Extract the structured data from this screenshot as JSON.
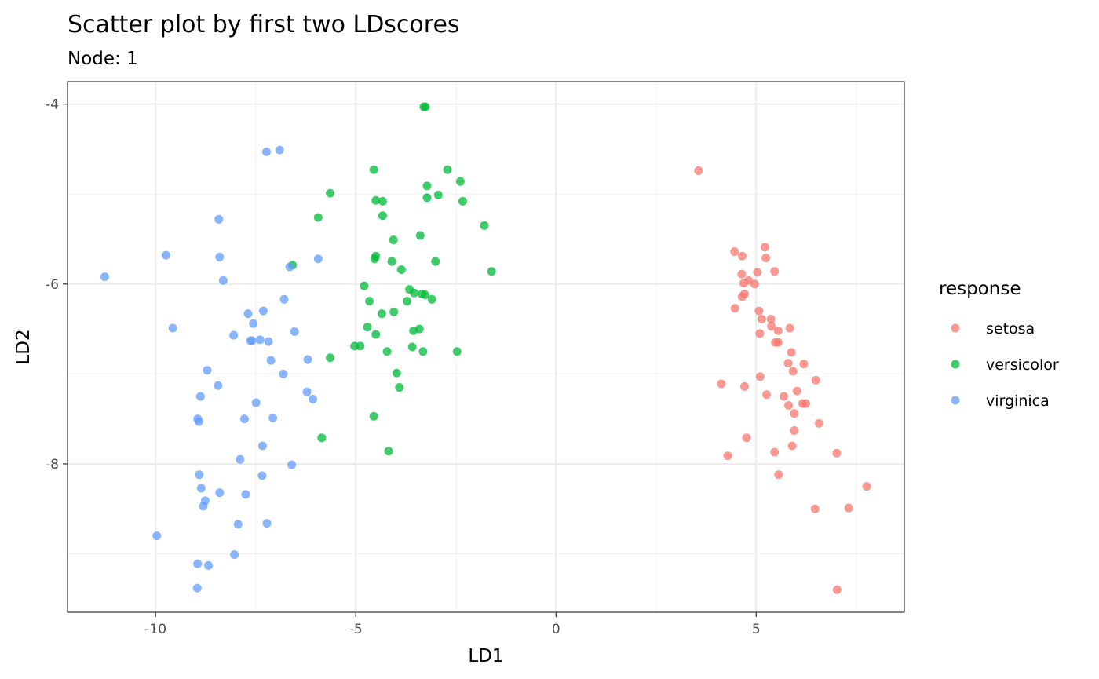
{
  "chart_data": {
    "type": "scatter",
    "title": "Scatter plot by first two LDscores",
    "subtitle": "Node: 1",
    "xlabel": "LD1",
    "ylabel": "LD2",
    "xlim": [
      -12.2,
      8.7
    ],
    "ylim": [
      -9.65,
      -3.75
    ],
    "xticks": [
      -10,
      -5,
      0,
      5
    ],
    "xtick_labels": [
      "-10",
      "-5",
      "0",
      "5"
    ],
    "yticks": [
      -8,
      -6,
      -4
    ],
    "ytick_labels": [
      "-8",
      "-6",
      "-4"
    ],
    "grid": true,
    "legend": {
      "title": "response",
      "position": "right",
      "entries": [
        "setosa",
        "versicolor",
        "virginica"
      ]
    },
    "series": [
      {
        "name": "setosa",
        "color": "#F8766D",
        "points": [
          [
            3.56,
            -4.74
          ],
          [
            4.46,
            -5.64
          ],
          [
            4.65,
            -5.69
          ],
          [
            5.22,
            -5.59
          ],
          [
            5.24,
            -5.71
          ],
          [
            4.64,
            -5.89
          ],
          [
            4.81,
            -5.96
          ],
          [
            4.69,
            -5.99
          ],
          [
            4.96,
            -6.0
          ],
          [
            5.03,
            -5.87
          ],
          [
            5.46,
            -5.86
          ],
          [
            4.71,
            -6.11
          ],
          [
            4.65,
            -6.14
          ],
          [
            4.47,
            -6.27
          ],
          [
            5.07,
            -6.3
          ],
          [
            5.14,
            -6.39
          ],
          [
            5.37,
            -6.39
          ],
          [
            5.38,
            -6.47
          ],
          [
            5.55,
            -6.52
          ],
          [
            5.84,
            -6.49
          ],
          [
            5.09,
            -6.55
          ],
          [
            5.48,
            -6.65
          ],
          [
            5.55,
            -6.65
          ],
          [
            5.88,
            -6.76
          ],
          [
            5.8,
            -6.88
          ],
          [
            6.19,
            -6.89
          ],
          [
            5.92,
            -6.97
          ],
          [
            5.1,
            -7.03
          ],
          [
            6.49,
            -7.07
          ],
          [
            4.13,
            -7.11
          ],
          [
            4.71,
            -7.14
          ],
          [
            6.02,
            -7.19
          ],
          [
            5.26,
            -7.23
          ],
          [
            5.69,
            -7.25
          ],
          [
            5.81,
            -7.35
          ],
          [
            6.16,
            -7.33
          ],
          [
            6.24,
            -7.33
          ],
          [
            5.95,
            -7.44
          ],
          [
            6.57,
            -7.55
          ],
          [
            5.95,
            -7.63
          ],
          [
            4.76,
            -7.71
          ],
          [
            5.9,
            -7.8
          ],
          [
            5.46,
            -7.87
          ],
          [
            7.01,
            -7.88
          ],
          [
            4.29,
            -7.91
          ],
          [
            5.56,
            -8.12
          ],
          [
            7.76,
            -8.25
          ],
          [
            6.47,
            -8.5
          ],
          [
            7.31,
            -8.49
          ],
          [
            7.02,
            -9.4
          ]
        ]
      },
      {
        "name": "versicolor",
        "color": "#00BA38",
        "points": [
          [
            -3.3,
            -4.03
          ],
          [
            -3.26,
            -4.03
          ],
          [
            -4.55,
            -4.73
          ],
          [
            -2.71,
            -4.73
          ],
          [
            -3.22,
            -4.91
          ],
          [
            -2.39,
            -4.86
          ],
          [
            -5.64,
            -4.99
          ],
          [
            -2.94,
            -5.01
          ],
          [
            -3.22,
            -5.04
          ],
          [
            -4.5,
            -5.07
          ],
          [
            -4.33,
            -5.08
          ],
          [
            -2.33,
            -5.08
          ],
          [
            -5.94,
            -5.26
          ],
          [
            -4.33,
            -5.24
          ],
          [
            -1.79,
            -5.35
          ],
          [
            -3.39,
            -5.46
          ],
          [
            -4.06,
            -5.51
          ],
          [
            -4.5,
            -5.69
          ],
          [
            -4.53,
            -5.72
          ],
          [
            -4.1,
            -5.75
          ],
          [
            -3.01,
            -5.75
          ],
          [
            -6.58,
            -5.79
          ],
          [
            -3.86,
            -5.84
          ],
          [
            -1.61,
            -5.86
          ],
          [
            -4.79,
            -6.02
          ],
          [
            -3.66,
            -6.06
          ],
          [
            -3.54,
            -6.1
          ],
          [
            -3.35,
            -6.11
          ],
          [
            -3.27,
            -6.12
          ],
          [
            -3.1,
            -6.17
          ],
          [
            -4.66,
            -6.19
          ],
          [
            -3.72,
            -6.19
          ],
          [
            -4.05,
            -6.31
          ],
          [
            -4.35,
            -6.33
          ],
          [
            -3.41,
            -6.5
          ],
          [
            -4.71,
            -6.48
          ],
          [
            -3.56,
            -6.52
          ],
          [
            -4.5,
            -6.56
          ],
          [
            -5.03,
            -6.69
          ],
          [
            -4.89,
            -6.69
          ],
          [
            -3.59,
            -6.7
          ],
          [
            -4.22,
            -6.75
          ],
          [
            -3.32,
            -6.75
          ],
          [
            -2.47,
            -6.75
          ],
          [
            -5.64,
            -6.82
          ],
          [
            -3.98,
            -6.99
          ],
          [
            -3.91,
            -7.15
          ],
          [
            -4.55,
            -7.47
          ],
          [
            -5.85,
            -7.71
          ],
          [
            -4.18,
            -7.86
          ]
        ]
      },
      {
        "name": "virginica",
        "color": "#619CFF",
        "points": [
          [
            -6.9,
            -4.51
          ],
          [
            -7.23,
            -4.53
          ],
          [
            -8.42,
            -5.28
          ],
          [
            -9.74,
            -5.68
          ],
          [
            -8.4,
            -5.7
          ],
          [
            -5.94,
            -5.72
          ],
          [
            -6.65,
            -5.81
          ],
          [
            -11.27,
            -5.92
          ],
          [
            -8.31,
            -5.96
          ],
          [
            -6.79,
            -6.17
          ],
          [
            -7.31,
            -6.3
          ],
          [
            -7.69,
            -6.33
          ],
          [
            -7.56,
            -6.44
          ],
          [
            -9.57,
            -6.49
          ],
          [
            -6.53,
            -6.53
          ],
          [
            -8.05,
            -6.57
          ],
          [
            -7.59,
            -6.63
          ],
          [
            -7.63,
            -6.63
          ],
          [
            -7.39,
            -6.62
          ],
          [
            -7.18,
            -6.64
          ],
          [
            -6.2,
            -6.84
          ],
          [
            -7.12,
            -6.85
          ],
          [
            -8.71,
            -6.96
          ],
          [
            -6.81,
            -7.0
          ],
          [
            -8.44,
            -7.13
          ],
          [
            -6.22,
            -7.2
          ],
          [
            -6.07,
            -7.28
          ],
          [
            -7.49,
            -7.32
          ],
          [
            -8.88,
            -7.25
          ],
          [
            -8.95,
            -7.5
          ],
          [
            -8.92,
            -7.53
          ],
          [
            -7.78,
            -7.5
          ],
          [
            -7.07,
            -7.49
          ],
          [
            -7.33,
            -7.8
          ],
          [
            -7.89,
            -7.95
          ],
          [
            -6.6,
            -8.01
          ],
          [
            -8.91,
            -8.12
          ],
          [
            -7.34,
            -8.13
          ],
          [
            -8.86,
            -8.27
          ],
          [
            -8.4,
            -8.32
          ],
          [
            -7.75,
            -8.34
          ],
          [
            -8.76,
            -8.41
          ],
          [
            -8.81,
            -8.47
          ],
          [
            -7.94,
            -8.67
          ],
          [
            -7.22,
            -8.66
          ],
          [
            -9.97,
            -8.8
          ],
          [
            -8.03,
            -9.01
          ],
          [
            -8.95,
            -9.11
          ],
          [
            -8.68,
            -9.13
          ],
          [
            -8.96,
            -9.38
          ]
        ]
      }
    ]
  }
}
